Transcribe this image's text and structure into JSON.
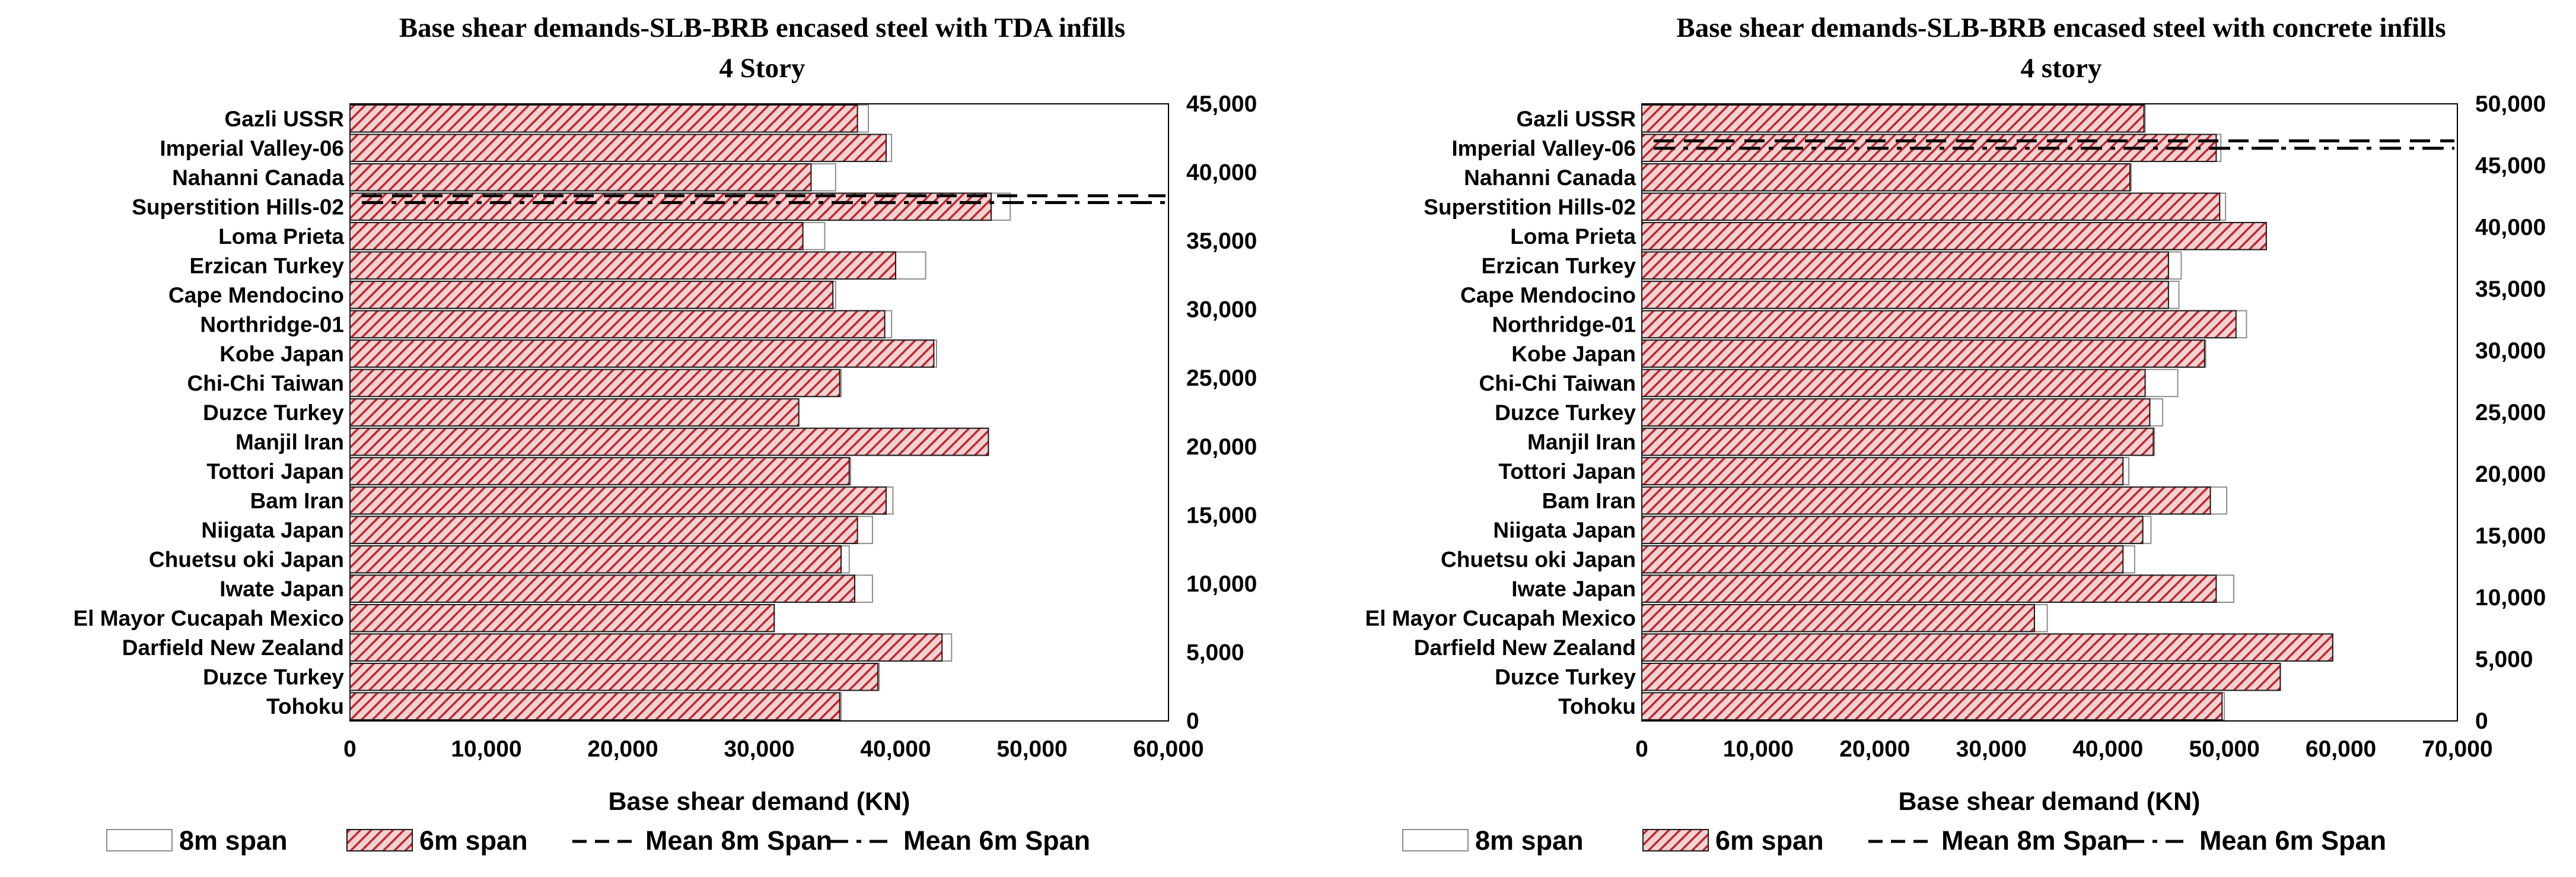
{
  "chart_data": [
    {
      "type": "bar",
      "orientation": "horizontal",
      "title": "Base shear demands-SLB-BRB encased steel with TDA infills",
      "subtitle": "4 Story",
      "xlabel": "Base shear demand (KN)",
      "ylabel": "",
      "xlim": [
        0,
        60000
      ],
      "x_ticks": [
        "0",
        "10,000",
        "20,000",
        "30,000",
        "40,000",
        "50,000",
        "60,000"
      ],
      "secondary_ylim": [
        0,
        45000
      ],
      "secondary_y_ticks": [
        "0",
        "5,000",
        "10,000",
        "15,000",
        "20,000",
        "25,000",
        "30,000",
        "35,000",
        "40,000",
        "45,000"
      ],
      "categories": [
        "Gazli USSR",
        "Imperial Valley-06",
        "Nahanni Canada",
        "Superstition Hills-02",
        "Loma Prieta",
        "Erzican Turkey",
        "Cape Mendocino",
        "Northridge-01",
        "Kobe Japan",
        "Chi-Chi Taiwan",
        "Duzce Turkey",
        "Manjil Iran",
        "Tottori Japan",
        "Bam Iran",
        "Niigata Japan",
        "Chuetsu oki Japan",
        "Iwate Japan",
        "El Mayor Cucapah Mexico",
        "Darfield New Zealand",
        "Duzce Turkey",
        "Tohoku"
      ],
      "series": [
        {
          "name": "8m span",
          "values": [
            38000,
            39700,
            35600,
            48400,
            34800,
            42200,
            35600,
            39700,
            43000,
            36000,
            32800,
            46800,
            36700,
            39800,
            38300,
            36600,
            38300,
            31100,
            44100,
            38800,
            36000
          ]
        },
        {
          "name": "6m span",
          "values": [
            37200,
            39300,
            33800,
            47000,
            33200,
            40000,
            35400,
            39200,
            42800,
            35900,
            32900,
            46800,
            36600,
            39300,
            37200,
            36000,
            37000,
            31100,
            43400,
            38700,
            35900
          ]
        }
      ],
      "mean_lines": [
        {
          "name": "Mean 8m Span",
          "value": 38300,
          "style": "dashed"
        },
        {
          "name": "Mean 6m Span",
          "value": 37800,
          "style": "dash-dot"
        }
      ],
      "legend": [
        "8m span",
        "6m span",
        "Mean 8m Span",
        "Mean 6m Span"
      ],
      "legend_position": "bottom",
      "grid": false
    },
    {
      "type": "bar",
      "orientation": "horizontal",
      "title": "Base shear demands-SLB-BRB encased steel with concrete infills",
      "subtitle": "4 story",
      "xlabel": "Base shear demand (KN)",
      "ylabel": "",
      "xlim": [
        0,
        70000
      ],
      "x_ticks": [
        "0",
        "10,000",
        "20,000",
        "30,000",
        "40,000",
        "50,000",
        "60,000",
        "70,000"
      ],
      "secondary_ylim": [
        0,
        50000
      ],
      "secondary_y_ticks": [
        "0",
        "5,000",
        "10,000",
        "15,000",
        "20,000",
        "25,000",
        "30,000",
        "35,000",
        "40,000",
        "45,000",
        "50,000"
      ],
      "categories": [
        "Gazli USSR",
        "Imperial Valley-06",
        "Nahanni Canada",
        "Superstition Hills-02",
        "Loma Prieta",
        "Erzican Turkey",
        "Cape Mendocino",
        "Northridge-01",
        "Kobe Japan",
        "Chi-Chi Taiwan",
        "Duzce Turkey",
        "Manjil Iran",
        "Tottori Japan",
        "Bam Iran",
        "Niigata Japan",
        "Chuetsu oki Japan",
        "Iwate Japan",
        "El Mayor Cucapah Mexico",
        "Darfield New Zealand",
        "Duzce Turkey",
        "Tohoku"
      ],
      "series": [
        {
          "name": "8m span",
          "values": [
            43200,
            49700,
            42000,
            50100,
            53600,
            46300,
            46100,
            51900,
            48400,
            46000,
            44700,
            44000,
            41800,
            50200,
            43700,
            42300,
            50800,
            34800,
            59300,
            54800,
            50000
          ]
        },
        {
          "name": "6m span",
          "values": [
            43100,
            49300,
            41900,
            49600,
            53600,
            45200,
            45200,
            51000,
            48300,
            43200,
            43600,
            43900,
            41300,
            48800,
            43000,
            41300,
            49300,
            33700,
            59300,
            54800,
            49800
          ]
        }
      ],
      "mean_lines": [
        {
          "name": "Mean 8m Span",
          "value": 47000,
          "style": "dashed"
        },
        {
          "name": "Mean 6m Span",
          "value": 46400,
          "style": "dash-dot"
        }
      ],
      "legend": [
        "8m span",
        "6m span",
        "Mean 8m Span",
        "Mean 6m Span"
      ],
      "legend_position": "bottom",
      "grid": false
    }
  ]
}
